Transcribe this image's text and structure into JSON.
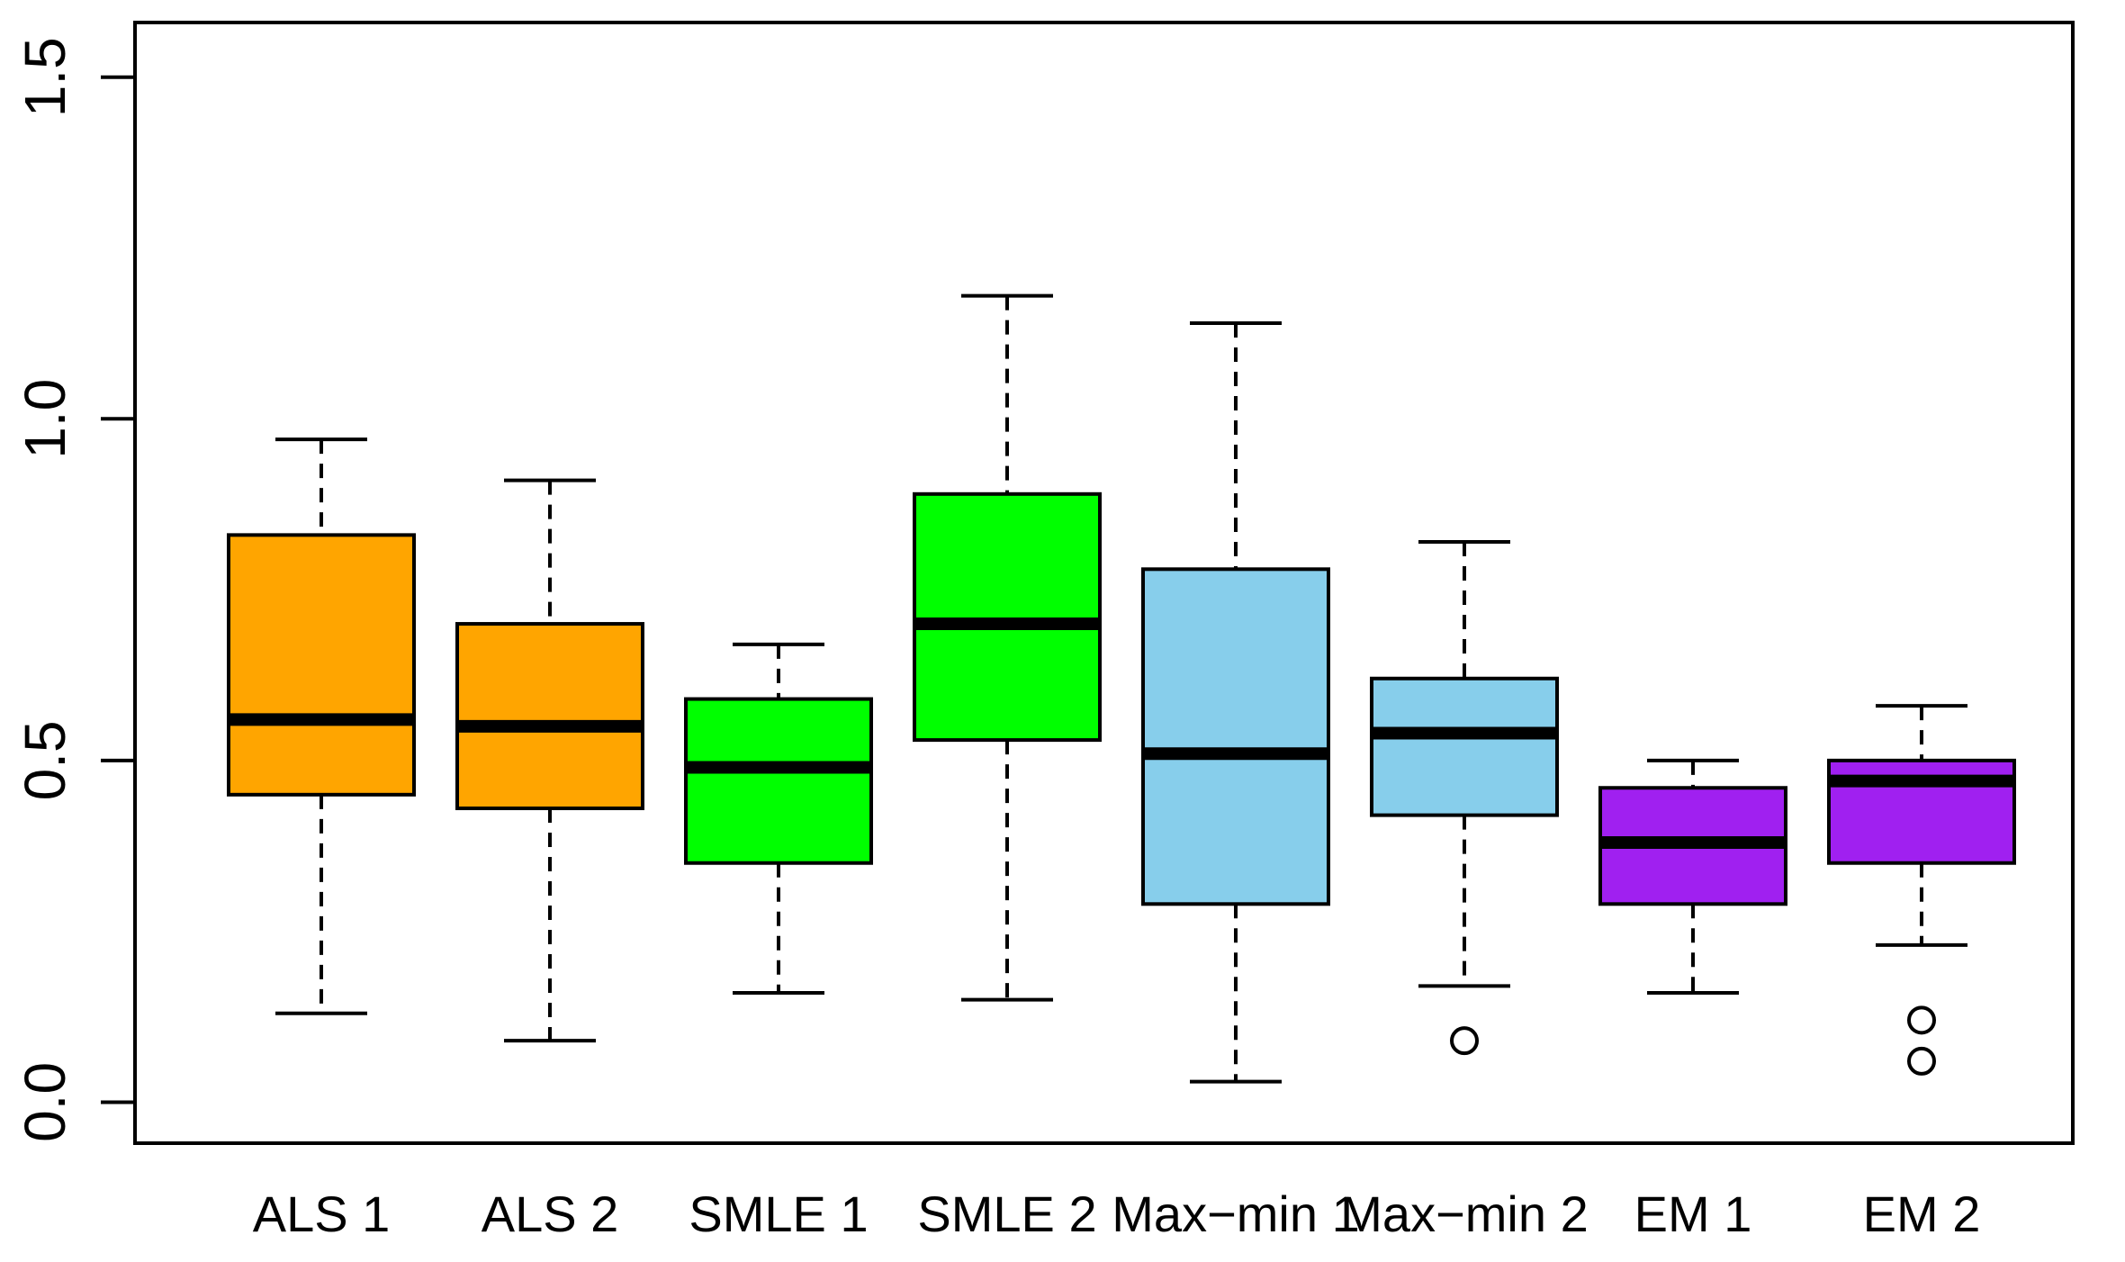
{
  "chart_data": {
    "type": "boxplot",
    "title": "",
    "xlabel": "",
    "ylabel": "",
    "ylim": [
      -0.06,
      1.58
    ],
    "y_ticks": [
      0.0,
      0.5,
      1.0,
      1.5
    ],
    "y_tick_labels": [
      "0.0",
      "0.5",
      "1.0",
      "1.5"
    ],
    "grid": false,
    "legend": "none",
    "boxes": [
      {
        "label": "ALS 1",
        "color": "#FFA500",
        "whisker_low": 0.13,
        "q1": 0.45,
        "median": 0.56,
        "q3": 0.83,
        "whisker_high": 0.97,
        "outliers": []
      },
      {
        "label": "ALS 2",
        "color": "#FFA500",
        "whisker_low": 0.09,
        "q1": 0.43,
        "median": 0.55,
        "q3": 0.7,
        "whisker_high": 0.91,
        "outliers": []
      },
      {
        "label": "SMLE 1",
        "color": "#00FF00",
        "whisker_low": 0.16,
        "q1": 0.35,
        "median": 0.49,
        "q3": 0.59,
        "whisker_high": 0.67,
        "outliers": []
      },
      {
        "label": "SMLE 2",
        "color": "#00FF00",
        "whisker_low": 0.15,
        "q1": 0.53,
        "median": 0.7,
        "q3": 0.89,
        "whisker_high": 1.18,
        "outliers": []
      },
      {
        "label": "Max−min 1",
        "color": "#87CEEB",
        "whisker_low": 0.03,
        "q1": 0.29,
        "median": 0.51,
        "q3": 0.78,
        "whisker_high": 1.14,
        "outliers": []
      },
      {
        "label": "Max−min 2",
        "color": "#87CEEB",
        "whisker_low": 0.17,
        "q1": 0.42,
        "median": 0.54,
        "q3": 0.62,
        "whisker_high": 0.82,
        "outliers": [
          0.09
        ]
      },
      {
        "label": "EM 1",
        "color": "#A020F0",
        "whisker_low": 0.16,
        "q1": 0.29,
        "median": 0.38,
        "q3": 0.46,
        "whisker_high": 0.5,
        "outliers": []
      },
      {
        "label": "EM 2",
        "color": "#A020F0",
        "whisker_low": 0.23,
        "q1": 0.35,
        "median": 0.47,
        "q3": 0.5,
        "whisker_high": 0.58,
        "outliers": [
          0.12,
          0.06
        ]
      }
    ]
  }
}
